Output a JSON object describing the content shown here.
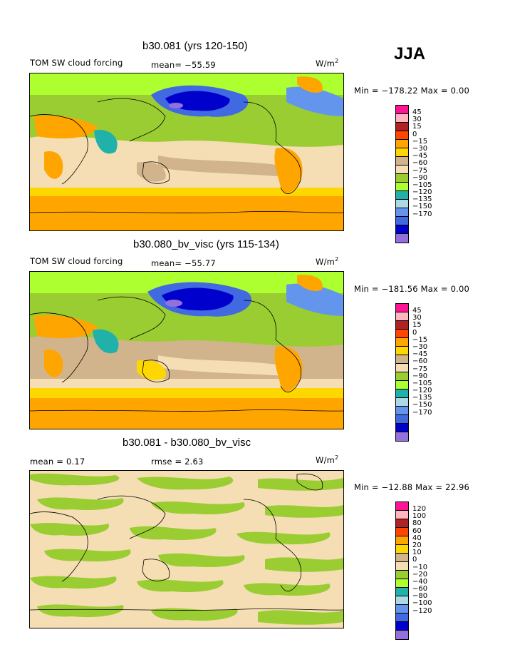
{
  "season": "JJA",
  "units_base": "W/m",
  "units_exp": "2",
  "panels": [
    {
      "title": "b30.081 (yrs 120-150)",
      "variable": "TOM SW cloud forcing",
      "stat1": "mean= −55.59",
      "stat2": "",
      "minmax": "Min = −178.22 Max =    0.00",
      "theme": "full"
    },
    {
      "title": "b30.080_bv_visc (yrs 115-134)",
      "variable": "TOM SW cloud forcing",
      "stat1": "mean= −55.77",
      "stat2": "",
      "minmax": "Min = −181.56 Max =    0.00",
      "theme": "full"
    },
    {
      "title": "b30.081 - b30.080_bv_visc",
      "variable": "",
      "stat1": "mean =    0.17",
      "stat2": "rmse =    2.63",
      "minmax": "Min = −12.88 Max =  22.96",
      "theme": "diff"
    }
  ],
  "colorbar_full": {
    "labels": [
      "45",
      "30",
      "15",
      "0",
      "−15",
      "−30",
      "−45",
      "−60",
      "−75",
      "−90",
      "−105",
      "−120",
      "−135",
      "−150",
      "−170"
    ],
    "colors": [
      "#ff1493",
      "#ffb6c1",
      "#b22222",
      "#ff4500",
      "#ffa500",
      "#ffd700",
      "#d2b48c",
      "#f5deb3",
      "#9acd32",
      "#adff2f",
      "#20b2aa",
      "#add8e6",
      "#6495ed",
      "#4169e1",
      "#0000cd",
      "#9370db"
    ]
  },
  "colorbar_diff": {
    "labels": [
      "120",
      "100",
      "80",
      "60",
      "40",
      "20",
      "10",
      "0",
      "−10",
      "−20",
      "−40",
      "−60",
      "−80",
      "−100",
      "−120"
    ],
    "colors": [
      "#ff1493",
      "#ffb6c1",
      "#b22222",
      "#ff4500",
      "#ffa500",
      "#ffd700",
      "#d2b48c",
      "#f5deb3",
      "#9acd32",
      "#adff2f",
      "#20b2aa",
      "#add8e6",
      "#6495ed",
      "#4169e1",
      "#0000cd",
      "#9370db"
    ]
  },
  "chart_data": [
    {
      "type": "heatmap",
      "title": "b30.081 (yrs 120-150)",
      "variable": "TOM SW cloud forcing",
      "season": "JJA",
      "units": "W/m2",
      "mean": -55.59,
      "min": -178.22,
      "max": 0.0,
      "contour_levels": [
        45,
        30,
        15,
        0,
        -15,
        -30,
        -45,
        -60,
        -75,
        -90,
        -105,
        -120,
        -135,
        -150,
        -170
      ]
    },
    {
      "type": "heatmap",
      "title": "b30.080_bv_visc (yrs 115-134)",
      "variable": "TOM SW cloud forcing",
      "season": "JJA",
      "units": "W/m2",
      "mean": -55.77,
      "min": -181.56,
      "max": 0.0,
      "contour_levels": [
        45,
        30,
        15,
        0,
        -15,
        -30,
        -45,
        -60,
        -75,
        -90,
        -105,
        -120,
        -135,
        -150,
        -170
      ]
    },
    {
      "type": "heatmap",
      "title": "b30.081 - b30.080_bv_visc",
      "season": "JJA",
      "units": "W/m2",
      "mean": 0.17,
      "rmse": 2.63,
      "min": -12.88,
      "max": 22.96,
      "contour_levels": [
        120,
        100,
        80,
        60,
        40,
        20,
        10,
        0,
        -10,
        -20,
        -40,
        -60,
        -80,
        -100,
        -120
      ]
    }
  ]
}
